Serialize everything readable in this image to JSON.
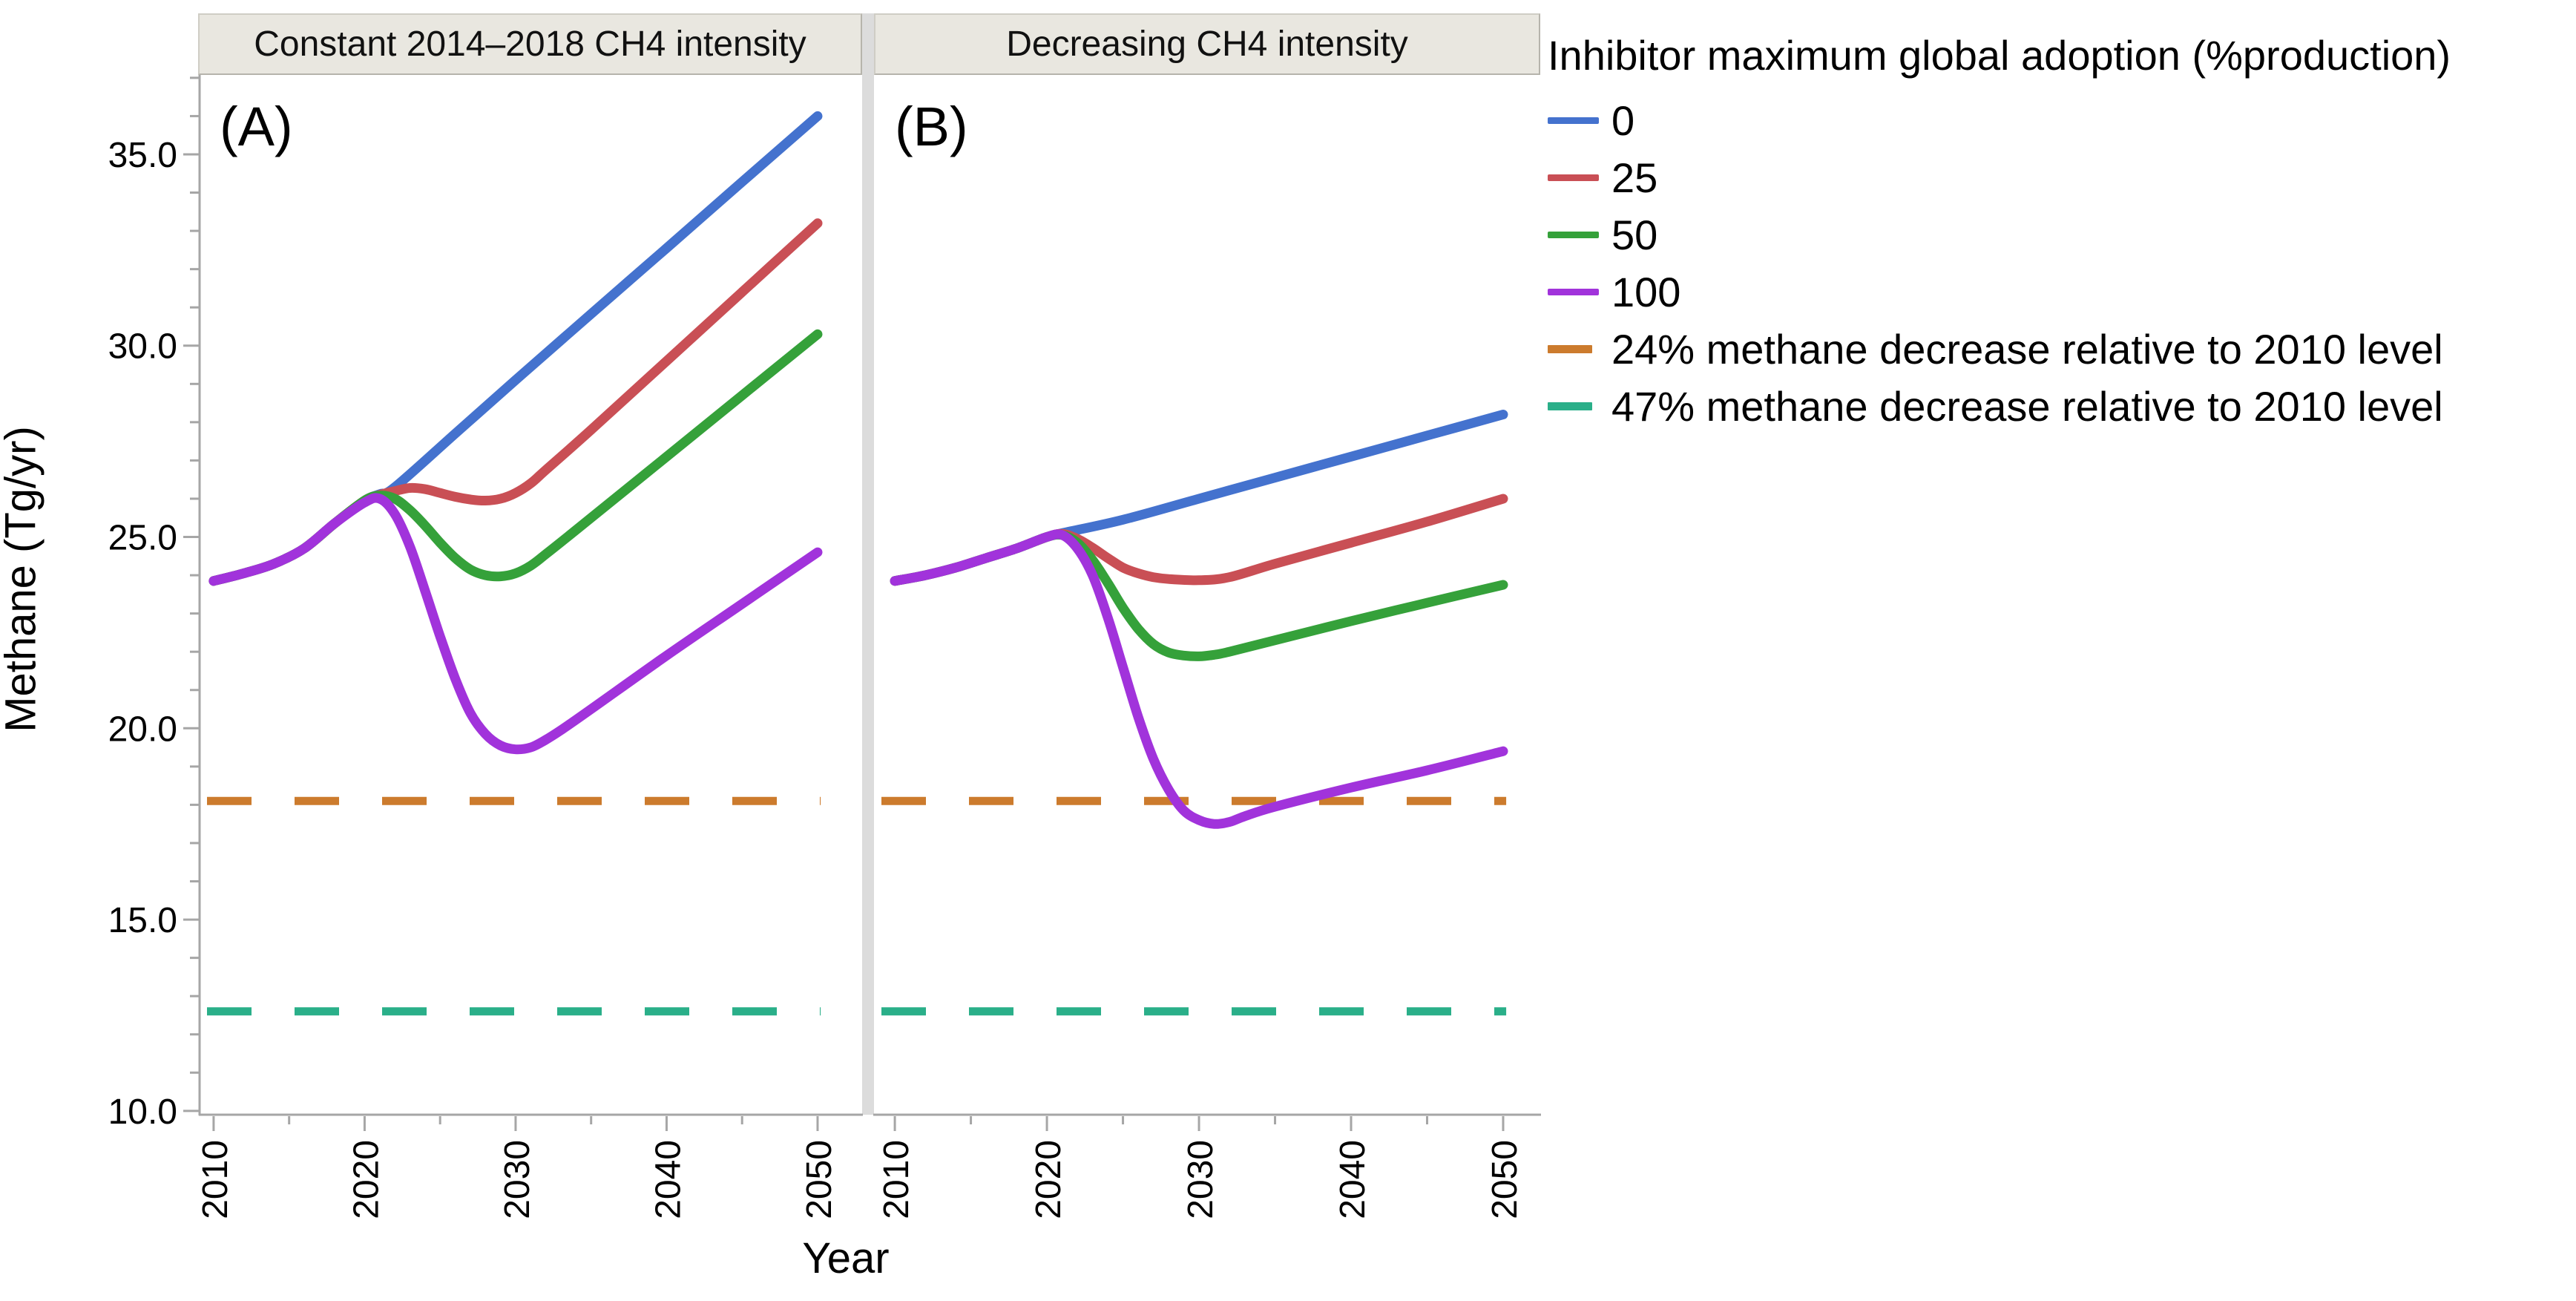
{
  "figure": {
    "panel_letters": {
      "a": "(A)",
      "b": "(B)"
    }
  },
  "axes": {
    "y_label": "Methane (Tg/yr)",
    "x_label": "Year",
    "y_tick_values": [
      10,
      15,
      20,
      25,
      30,
      35
    ],
    "y_tick_labels": [
      "10.0",
      "15.0",
      "20.0",
      "25.0",
      "30.0",
      "35.0"
    ],
    "y_minor_tick_values": [
      11,
      12,
      13,
      14,
      16,
      17,
      18,
      19,
      21,
      22,
      23,
      24,
      26,
      27,
      28,
      29,
      31,
      32,
      33,
      34,
      36,
      37
    ],
    "x_tick_values": [
      2010,
      2020,
      2030,
      2040,
      2050
    ],
    "x_tick_labels": [
      "2010",
      "2020",
      "2030",
      "2040",
      "2050"
    ],
    "x_minor_tick_values": [
      2015,
      2025,
      2035,
      2045
    ],
    "ylim": [
      9.9,
      37.075
    ],
    "grid": "off",
    "axis_color": "#a6a6a6"
  },
  "legend": {
    "title": "Inhibitor maximum global adoption (%production)",
    "position": "right-top",
    "items": [
      {
        "label": "0",
        "color": "#4472ce",
        "dashed": false
      },
      {
        "label": "25",
        "color": "#c94f55",
        "dashed": false
      },
      {
        "label": "50",
        "color": "#35a13a",
        "dashed": false
      },
      {
        "label": "100",
        "color": "#a133db",
        "dashed": false
      },
      {
        "label": "24% methane decrease relative to 2010 level",
        "color": "#cc7b2d",
        "dashed": true
      },
      {
        "label": "47% methane decrease relative to 2010 level",
        "color": "#2aaf89",
        "dashed": true
      }
    ]
  },
  "chart_data": [
    {
      "type": "line",
      "panel": "A",
      "title": "Constant 2014–2018 CH4 intensity",
      "xlim": [
        2009.07,
        2052.95
      ],
      "series": [
        {
          "name": "0",
          "color": "#4472ce",
          "points": [
            [
              2010,
              23.85
            ],
            [
              2012,
              24.05
            ],
            [
              2014,
              24.3
            ],
            [
              2016,
              24.7
            ],
            [
              2018,
              25.35
            ],
            [
              2020,
              25.95
            ],
            [
              2021,
              26.12
            ],
            [
              2022,
              26.3
            ],
            [
              2026,
              27.7
            ],
            [
              2030,
              29.1
            ],
            [
              2035,
              30.83
            ],
            [
              2040,
              32.55
            ],
            [
              2045,
              34.28
            ],
            [
              2050,
              36.0
            ]
          ]
        },
        {
          "name": "25",
          "color": "#c94f55",
          "points": [
            [
              2010,
              23.85
            ],
            [
              2012,
              24.05
            ],
            [
              2014,
              24.3
            ],
            [
              2016,
              24.7
            ],
            [
              2018,
              25.35
            ],
            [
              2020,
              25.95
            ],
            [
              2021,
              26.1
            ],
            [
              2022,
              26.2
            ],
            [
              2023,
              26.28
            ],
            [
              2024,
              26.25
            ],
            [
              2025,
              26.15
            ],
            [
              2026,
              26.05
            ],
            [
              2027,
              25.98
            ],
            [
              2028,
              25.95
            ],
            [
              2029,
              26.0
            ],
            [
              2030,
              26.15
            ],
            [
              2031,
              26.4
            ],
            [
              2032,
              26.75
            ],
            [
              2035,
              27.8
            ],
            [
              2040,
              29.6
            ],
            [
              2045,
              31.4
            ],
            [
              2050,
              33.2
            ]
          ]
        },
        {
          "name": "50",
          "color": "#35a13a",
          "points": [
            [
              2010,
              23.85
            ],
            [
              2012,
              24.05
            ],
            [
              2014,
              24.3
            ],
            [
              2016,
              24.7
            ],
            [
              2018,
              25.35
            ],
            [
              2020,
              25.95
            ],
            [
              2021,
              26.08
            ],
            [
              2022,
              26.0
            ],
            [
              2023,
              25.7
            ],
            [
              2024,
              25.3
            ],
            [
              2025,
              24.85
            ],
            [
              2026,
              24.45
            ],
            [
              2027,
              24.15
            ],
            [
              2028,
              24.0
            ],
            [
              2029,
              23.97
            ],
            [
              2030,
              24.05
            ],
            [
              2031,
              24.25
            ],
            [
              2032,
              24.55
            ],
            [
              2035,
              25.5
            ],
            [
              2040,
              27.1
            ],
            [
              2045,
              28.7
            ],
            [
              2050,
              30.3
            ]
          ]
        },
        {
          "name": "100",
          "color": "#a133db",
          "points": [
            [
              2010,
              23.85
            ],
            [
              2012,
              24.05
            ],
            [
              2014,
              24.3
            ],
            [
              2016,
              24.7
            ],
            [
              2018,
              25.35
            ],
            [
              2020,
              25.9
            ],
            [
              2021,
              26.0
            ],
            [
              2022,
              25.6
            ],
            [
              2023,
              24.75
            ],
            [
              2024,
              23.6
            ],
            [
              2025,
              22.4
            ],
            [
              2026,
              21.3
            ],
            [
              2027,
              20.4
            ],
            [
              2028,
              19.85
            ],
            [
              2029,
              19.55
            ],
            [
              2030,
              19.45
            ],
            [
              2031,
              19.5
            ],
            [
              2032,
              19.7
            ],
            [
              2033,
              19.95
            ],
            [
              2035,
              20.5
            ],
            [
              2040,
              21.9
            ],
            [
              2045,
              23.25
            ],
            [
              2050,
              24.6
            ]
          ]
        }
      ],
      "hlines": [
        {
          "label": "24% methane decrease relative to 2010 level",
          "y": 18.1,
          "color": "#cc7b2d",
          "dashed": true
        },
        {
          "label": "47% methane decrease relative to 2010 level",
          "y": 12.6,
          "color": "#2aaf89",
          "dashed": true
        }
      ]
    },
    {
      "type": "line",
      "panel": "B",
      "title": "Decreasing CH4 intensity",
      "xlim": [
        2008.63,
        2052.44
      ],
      "series": [
        {
          "name": "0",
          "color": "#4472ce",
          "points": [
            [
              2010,
              23.85
            ],
            [
              2012,
              24.0
            ],
            [
              2014,
              24.2
            ],
            [
              2016,
              24.45
            ],
            [
              2018,
              24.7
            ],
            [
              2020,
              25.0
            ],
            [
              2021,
              25.1
            ],
            [
              2025,
              25.45
            ],
            [
              2030,
              26.0
            ],
            [
              2035,
              26.55
            ],
            [
              2040,
              27.1
            ],
            [
              2045,
              27.65
            ],
            [
              2050,
              28.2
            ]
          ]
        },
        {
          "name": "25",
          "color": "#c94f55",
          "points": [
            [
              2010,
              23.85
            ],
            [
              2012,
              24.0
            ],
            [
              2014,
              24.2
            ],
            [
              2016,
              24.45
            ],
            [
              2018,
              24.7
            ],
            [
              2020,
              25.0
            ],
            [
              2021,
              25.08
            ],
            [
              2022,
              24.95
            ],
            [
              2023,
              24.72
            ],
            [
              2024,
              24.45
            ],
            [
              2025,
              24.2
            ],
            [
              2026,
              24.05
            ],
            [
              2027,
              23.95
            ],
            [
              2028,
              23.9
            ],
            [
              2030,
              23.87
            ],
            [
              2032,
              23.95
            ],
            [
              2035,
              24.3
            ],
            [
              2040,
              24.85
            ],
            [
              2045,
              25.4
            ],
            [
              2050,
              26.0
            ]
          ]
        },
        {
          "name": "50",
          "color": "#35a13a",
          "points": [
            [
              2010,
              23.85
            ],
            [
              2012,
              24.0
            ],
            [
              2014,
              24.2
            ],
            [
              2016,
              24.45
            ],
            [
              2018,
              24.7
            ],
            [
              2020,
              25.0
            ],
            [
              2021,
              25.05
            ],
            [
              2022,
              24.85
            ],
            [
              2023,
              24.4
            ],
            [
              2024,
              23.8
            ],
            [
              2025,
              23.15
            ],
            [
              2026,
              22.6
            ],
            [
              2027,
              22.2
            ],
            [
              2028,
              21.98
            ],
            [
              2029,
              21.9
            ],
            [
              2030,
              21.88
            ],
            [
              2031,
              21.92
            ],
            [
              2032,
              22.0
            ],
            [
              2035,
              22.3
            ],
            [
              2040,
              22.8
            ],
            [
              2045,
              23.28
            ],
            [
              2050,
              23.75
            ]
          ]
        },
        {
          "name": "100",
          "color": "#a133db",
          "points": [
            [
              2010,
              23.85
            ],
            [
              2012,
              24.0
            ],
            [
              2014,
              24.2
            ],
            [
              2016,
              24.45
            ],
            [
              2018,
              24.7
            ],
            [
              2020,
              25.0
            ],
            [
              2021,
              25.05
            ],
            [
              2022,
              24.7
            ],
            [
              2023,
              24.0
            ],
            [
              2024,
              22.9
            ],
            [
              2025,
              21.6
            ],
            [
              2026,
              20.3
            ],
            [
              2027,
              19.2
            ],
            [
              2028,
              18.4
            ],
            [
              2029,
              17.85
            ],
            [
              2030,
              17.6
            ],
            [
              2031,
              17.5
            ],
            [
              2032,
              17.55
            ],
            [
              2033,
              17.7
            ],
            [
              2035,
              17.95
            ],
            [
              2040,
              18.45
            ],
            [
              2045,
              18.9
            ],
            [
              2050,
              19.4
            ]
          ]
        }
      ],
      "hlines": [
        {
          "label": "24% methane decrease relative to 2010 level",
          "y": 18.1,
          "color": "#cc7b2d",
          "dashed": true
        },
        {
          "label": "47% methane decrease relative to 2010 level",
          "y": 12.6,
          "color": "#2aaf89",
          "dashed": true
        }
      ]
    }
  ]
}
